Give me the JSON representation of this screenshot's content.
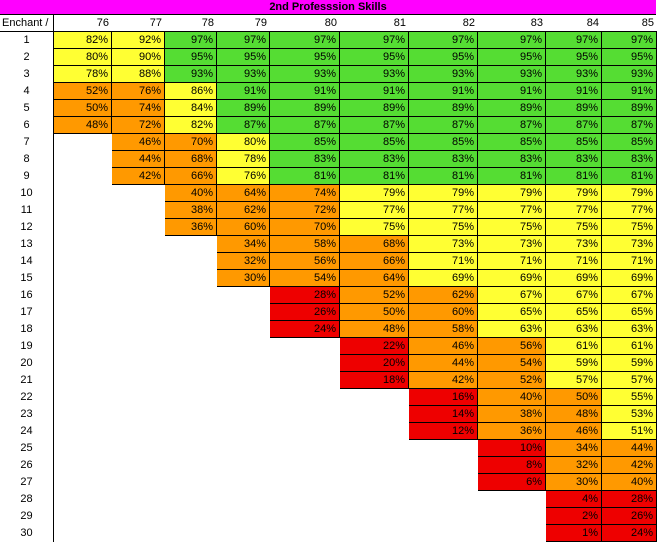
{
  "title": "2nd Professsion Skills",
  "header_label": "Enchant /",
  "columns": [
    "76",
    "77",
    "78",
    "79",
    "80",
    "81",
    "82",
    "83",
    "84",
    "85"
  ],
  "colors": {
    "green": "#55dd33",
    "yellow": "#ffff33",
    "orange": "#ff9900",
    "red": "#ee0000",
    "title": "#ff00ff"
  },
  "rows": [
    {
      "label": "1",
      "cells": [
        [
          "82%",
          "Y"
        ],
        [
          "92%",
          "Y"
        ],
        [
          "97%",
          "G"
        ],
        [
          "97%",
          "G"
        ],
        [
          "97%",
          "G"
        ],
        [
          "97%",
          "G"
        ],
        [
          "97%",
          "G"
        ],
        [
          "97%",
          "G"
        ],
        [
          "97%",
          "G"
        ],
        [
          "97%",
          "G"
        ]
      ]
    },
    {
      "label": "2",
      "cells": [
        [
          "80%",
          "Y"
        ],
        [
          "90%",
          "Y"
        ],
        [
          "95%",
          "G"
        ],
        [
          "95%",
          "G"
        ],
        [
          "95%",
          "G"
        ],
        [
          "95%",
          "G"
        ],
        [
          "95%",
          "G"
        ],
        [
          "95%",
          "G"
        ],
        [
          "95%",
          "G"
        ],
        [
          "95%",
          "G"
        ]
      ]
    },
    {
      "label": "3",
      "cells": [
        [
          "78%",
          "Y"
        ],
        [
          "88%",
          "Y"
        ],
        [
          "93%",
          "G"
        ],
        [
          "93%",
          "G"
        ],
        [
          "93%",
          "G"
        ],
        [
          "93%",
          "G"
        ],
        [
          "93%",
          "G"
        ],
        [
          "93%",
          "G"
        ],
        [
          "93%",
          "G"
        ],
        [
          "93%",
          "G"
        ]
      ]
    },
    {
      "label": "4",
      "cells": [
        [
          "52%",
          "O"
        ],
        [
          "76%",
          "O"
        ],
        [
          "86%",
          "Y"
        ],
        [
          "91%",
          "G"
        ],
        [
          "91%",
          "G"
        ],
        [
          "91%",
          "G"
        ],
        [
          "91%",
          "G"
        ],
        [
          "91%",
          "G"
        ],
        [
          "91%",
          "G"
        ],
        [
          "91%",
          "G"
        ]
      ]
    },
    {
      "label": "5",
      "cells": [
        [
          "50%",
          "O"
        ],
        [
          "74%",
          "O"
        ],
        [
          "84%",
          "Y"
        ],
        [
          "89%",
          "G"
        ],
        [
          "89%",
          "G"
        ],
        [
          "89%",
          "G"
        ],
        [
          "89%",
          "G"
        ],
        [
          "89%",
          "G"
        ],
        [
          "89%",
          "G"
        ],
        [
          "89%",
          "G"
        ]
      ]
    },
    {
      "label": "6",
      "cells": [
        [
          "48%",
          "O"
        ],
        [
          "72%",
          "O"
        ],
        [
          "82%",
          "Y"
        ],
        [
          "87%",
          "G"
        ],
        [
          "87%",
          "G"
        ],
        [
          "87%",
          "G"
        ],
        [
          "87%",
          "G"
        ],
        [
          "87%",
          "G"
        ],
        [
          "87%",
          "G"
        ],
        [
          "87%",
          "G"
        ]
      ]
    },
    {
      "label": "7",
      "cells": [
        [
          "",
          ""
        ],
        [
          "46%",
          "O"
        ],
        [
          "70%",
          "O"
        ],
        [
          "80%",
          "Y"
        ],
        [
          "85%",
          "G"
        ],
        [
          "85%",
          "G"
        ],
        [
          "85%",
          "G"
        ],
        [
          "85%",
          "G"
        ],
        [
          "85%",
          "G"
        ],
        [
          "85%",
          "G"
        ]
      ]
    },
    {
      "label": "8",
      "cells": [
        [
          "",
          ""
        ],
        [
          "44%",
          "O"
        ],
        [
          "68%",
          "O"
        ],
        [
          "78%",
          "Y"
        ],
        [
          "83%",
          "G"
        ],
        [
          "83%",
          "G"
        ],
        [
          "83%",
          "G"
        ],
        [
          "83%",
          "G"
        ],
        [
          "83%",
          "G"
        ],
        [
          "83%",
          "G"
        ]
      ]
    },
    {
      "label": "9",
      "cells": [
        [
          "",
          ""
        ],
        [
          "42%",
          "O"
        ],
        [
          "66%",
          "O"
        ],
        [
          "76%",
          "Y"
        ],
        [
          "81%",
          "G"
        ],
        [
          "81%",
          "G"
        ],
        [
          "81%",
          "G"
        ],
        [
          "81%",
          "G"
        ],
        [
          "81%",
          "G"
        ],
        [
          "81%",
          "G"
        ]
      ]
    },
    {
      "label": "10",
      "cells": [
        [
          "",
          ""
        ],
        [
          "",
          ""
        ],
        [
          "40%",
          "O"
        ],
        [
          "64%",
          "O"
        ],
        [
          "74%",
          "O"
        ],
        [
          "79%",
          "Y"
        ],
        [
          "79%",
          "Y"
        ],
        [
          "79%",
          "Y"
        ],
        [
          "79%",
          "Y"
        ],
        [
          "79%",
          "Y"
        ]
      ]
    },
    {
      "label": "11",
      "cells": [
        [
          "",
          ""
        ],
        [
          "",
          ""
        ],
        [
          "38%",
          "O"
        ],
        [
          "62%",
          "O"
        ],
        [
          "72%",
          "O"
        ],
        [
          "77%",
          "Y"
        ],
        [
          "77%",
          "Y"
        ],
        [
          "77%",
          "Y"
        ],
        [
          "77%",
          "Y"
        ],
        [
          "77%",
          "Y"
        ]
      ]
    },
    {
      "label": "12",
      "cells": [
        [
          "",
          ""
        ],
        [
          "",
          ""
        ],
        [
          "36%",
          "O"
        ],
        [
          "60%",
          "O"
        ],
        [
          "70%",
          "O"
        ],
        [
          "75%",
          "Y"
        ],
        [
          "75%",
          "Y"
        ],
        [
          "75%",
          "Y"
        ],
        [
          "75%",
          "Y"
        ],
        [
          "75%",
          "Y"
        ]
      ]
    },
    {
      "label": "13",
      "cells": [
        [
          "",
          ""
        ],
        [
          "",
          ""
        ],
        [
          "",
          ""
        ],
        [
          "34%",
          "O"
        ],
        [
          "58%",
          "O"
        ],
        [
          "68%",
          "O"
        ],
        [
          "73%",
          "Y"
        ],
        [
          "73%",
          "Y"
        ],
        [
          "73%",
          "Y"
        ],
        [
          "73%",
          "Y"
        ]
      ]
    },
    {
      "label": "14",
      "cells": [
        [
          "",
          ""
        ],
        [
          "",
          ""
        ],
        [
          "",
          ""
        ],
        [
          "32%",
          "O"
        ],
        [
          "56%",
          "O"
        ],
        [
          "66%",
          "O"
        ],
        [
          "71%",
          "Y"
        ],
        [
          "71%",
          "Y"
        ],
        [
          "71%",
          "Y"
        ],
        [
          "71%",
          "Y"
        ]
      ]
    },
    {
      "label": "15",
      "cells": [
        [
          "",
          ""
        ],
        [
          "",
          ""
        ],
        [
          "",
          ""
        ],
        [
          "30%",
          "O"
        ],
        [
          "54%",
          "O"
        ],
        [
          "64%",
          "O"
        ],
        [
          "69%",
          "Y"
        ],
        [
          "69%",
          "Y"
        ],
        [
          "69%",
          "Y"
        ],
        [
          "69%",
          "Y"
        ]
      ]
    },
    {
      "label": "16",
      "cells": [
        [
          "",
          ""
        ],
        [
          "",
          ""
        ],
        [
          "",
          ""
        ],
        [
          "",
          ""
        ],
        [
          "28%",
          "R"
        ],
        [
          "52%",
          "O"
        ],
        [
          "62%",
          "O"
        ],
        [
          "67%",
          "Y"
        ],
        [
          "67%",
          "Y"
        ],
        [
          "67%",
          "Y"
        ]
      ]
    },
    {
      "label": "17",
      "cells": [
        [
          "",
          ""
        ],
        [
          "",
          ""
        ],
        [
          "",
          ""
        ],
        [
          "",
          ""
        ],
        [
          "26%",
          "R"
        ],
        [
          "50%",
          "O"
        ],
        [
          "60%",
          "O"
        ],
        [
          "65%",
          "Y"
        ],
        [
          "65%",
          "Y"
        ],
        [
          "65%",
          "Y"
        ]
      ]
    },
    {
      "label": "18",
      "cells": [
        [
          "",
          ""
        ],
        [
          "",
          ""
        ],
        [
          "",
          ""
        ],
        [
          "",
          ""
        ],
        [
          "24%",
          "R"
        ],
        [
          "48%",
          "O"
        ],
        [
          "58%",
          "O"
        ],
        [
          "63%",
          "Y"
        ],
        [
          "63%",
          "Y"
        ],
        [
          "63%",
          "Y"
        ]
      ]
    },
    {
      "label": "19",
      "cells": [
        [
          "",
          ""
        ],
        [
          "",
          ""
        ],
        [
          "",
          ""
        ],
        [
          "",
          ""
        ],
        [
          "",
          ""
        ],
        [
          "22%",
          "R"
        ],
        [
          "46%",
          "O"
        ],
        [
          "56%",
          "O"
        ],
        [
          "61%",
          "Y"
        ],
        [
          "61%",
          "Y"
        ]
      ]
    },
    {
      "label": "20",
      "cells": [
        [
          "",
          ""
        ],
        [
          "",
          ""
        ],
        [
          "",
          ""
        ],
        [
          "",
          ""
        ],
        [
          "",
          ""
        ],
        [
          "20%",
          "R"
        ],
        [
          "44%",
          "O"
        ],
        [
          "54%",
          "O"
        ],
        [
          "59%",
          "Y"
        ],
        [
          "59%",
          "Y"
        ]
      ]
    },
    {
      "label": "21",
      "cells": [
        [
          "",
          ""
        ],
        [
          "",
          ""
        ],
        [
          "",
          ""
        ],
        [
          "",
          ""
        ],
        [
          "",
          ""
        ],
        [
          "18%",
          "R"
        ],
        [
          "42%",
          "O"
        ],
        [
          "52%",
          "O"
        ],
        [
          "57%",
          "Y"
        ],
        [
          "57%",
          "Y"
        ]
      ]
    },
    {
      "label": "22",
      "cells": [
        [
          "",
          ""
        ],
        [
          "",
          ""
        ],
        [
          "",
          ""
        ],
        [
          "",
          ""
        ],
        [
          "",
          ""
        ],
        [
          "",
          ""
        ],
        [
          "16%",
          "R"
        ],
        [
          "40%",
          "O"
        ],
        [
          "50%",
          "O"
        ],
        [
          "55%",
          "Y"
        ]
      ]
    },
    {
      "label": "23",
      "cells": [
        [
          "",
          ""
        ],
        [
          "",
          ""
        ],
        [
          "",
          ""
        ],
        [
          "",
          ""
        ],
        [
          "",
          ""
        ],
        [
          "",
          ""
        ],
        [
          "14%",
          "R"
        ],
        [
          "38%",
          "O"
        ],
        [
          "48%",
          "O"
        ],
        [
          "53%",
          "Y"
        ]
      ]
    },
    {
      "label": "24",
      "cells": [
        [
          "",
          ""
        ],
        [
          "",
          ""
        ],
        [
          "",
          ""
        ],
        [
          "",
          ""
        ],
        [
          "",
          ""
        ],
        [
          "",
          ""
        ],
        [
          "12%",
          "R"
        ],
        [
          "36%",
          "O"
        ],
        [
          "46%",
          "O"
        ],
        [
          "51%",
          "Y"
        ]
      ]
    },
    {
      "label": "25",
      "cells": [
        [
          "",
          ""
        ],
        [
          "",
          ""
        ],
        [
          "",
          ""
        ],
        [
          "",
          ""
        ],
        [
          "",
          ""
        ],
        [
          "",
          ""
        ],
        [
          "",
          ""
        ],
        [
          "10%",
          "R"
        ],
        [
          "34%",
          "O"
        ],
        [
          "44%",
          "O"
        ]
      ]
    },
    {
      "label": "26",
      "cells": [
        [
          "",
          ""
        ],
        [
          "",
          ""
        ],
        [
          "",
          ""
        ],
        [
          "",
          ""
        ],
        [
          "",
          ""
        ],
        [
          "",
          ""
        ],
        [
          "",
          ""
        ],
        [
          "8%",
          "R"
        ],
        [
          "32%",
          "O"
        ],
        [
          "42%",
          "O"
        ]
      ]
    },
    {
      "label": "27",
      "cells": [
        [
          "",
          ""
        ],
        [
          "",
          ""
        ],
        [
          "",
          ""
        ],
        [
          "",
          ""
        ],
        [
          "",
          ""
        ],
        [
          "",
          ""
        ],
        [
          "",
          ""
        ],
        [
          "6%",
          "R"
        ],
        [
          "30%",
          "O"
        ],
        [
          "40%",
          "O"
        ]
      ]
    },
    {
      "label": "28",
      "cells": [
        [
          "",
          ""
        ],
        [
          "",
          ""
        ],
        [
          "",
          ""
        ],
        [
          "",
          ""
        ],
        [
          "",
          ""
        ],
        [
          "",
          ""
        ],
        [
          "",
          ""
        ],
        [
          "",
          ""
        ],
        [
          "4%",
          "R"
        ],
        [
          "28%",
          "R"
        ]
      ]
    },
    {
      "label": "29",
      "cells": [
        [
          "",
          ""
        ],
        [
          "",
          ""
        ],
        [
          "",
          ""
        ],
        [
          "",
          ""
        ],
        [
          "",
          ""
        ],
        [
          "",
          ""
        ],
        [
          "",
          ""
        ],
        [
          "",
          ""
        ],
        [
          "2%",
          "R"
        ],
        [
          "26%",
          "R"
        ]
      ]
    },
    {
      "label": "30",
      "cells": [
        [
          "",
          ""
        ],
        [
          "",
          ""
        ],
        [
          "",
          ""
        ],
        [
          "",
          ""
        ],
        [
          "",
          ""
        ],
        [
          "",
          ""
        ],
        [
          "",
          ""
        ],
        [
          "",
          ""
        ],
        [
          "1%",
          "R"
        ],
        [
          "24%",
          "R"
        ]
      ]
    }
  ]
}
